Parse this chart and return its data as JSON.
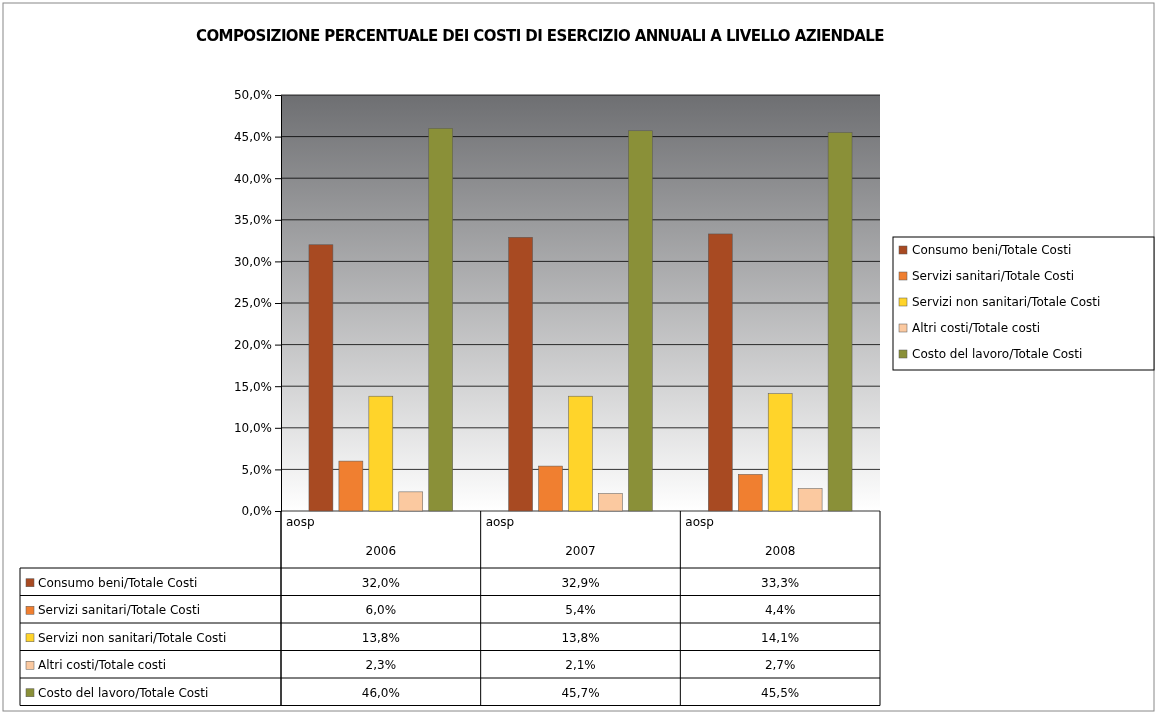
{
  "chart_data": {
    "type": "bar",
    "title": "COMPOSIZIONE PERCENTUALE DEI COSTI DI ESERCIZIO ANNUALI A LIVELLO AZIENDALE",
    "categories": [
      "aosp\n2006",
      "aosp\n2007",
      "aosp\n2008"
    ],
    "series": [
      {
        "name": "Consumo beni/Totale Costi",
        "color": "#a84a22",
        "values": [
          32.0,
          32.9,
          33.3
        ],
        "value_labels": [
          "32,0%",
          "32,9%",
          "33,3%"
        ]
      },
      {
        "name": "Servizi sanitari/Totale Costi",
        "color": "#f07f30",
        "values": [
          6.0,
          5.4,
          4.4
        ],
        "value_labels": [
          "6,0%",
          "5,4%",
          "4,4%"
        ]
      },
      {
        "name": "Servizi non sanitari/Totale Costi",
        "color": "#ffd42a",
        "values": [
          13.8,
          13.8,
          14.1
        ],
        "value_labels": [
          "13,8%",
          "13,8%",
          "14,1%"
        ]
      },
      {
        "name": "Altri costi/Totale costi",
        "color": "#fbc9a0",
        "values": [
          2.3,
          2.1,
          2.7
        ],
        "value_labels": [
          "2,3%",
          "2,1%",
          "2,7%"
        ]
      },
      {
        "name": "Costo del lavoro/Totale Costi",
        "color": "#8a9038",
        "values": [
          46.0,
          45.7,
          45.5
        ],
        "value_labels": [
          "46,0%",
          "45,7%",
          "45,5%"
        ]
      }
    ],
    "ylim": [
      0,
      50
    ],
    "yticks": [
      {
        "value": 0,
        "label": "0,0%"
      },
      {
        "value": 5,
        "label": "5,0%"
      },
      {
        "value": 10,
        "label": "10,0%"
      },
      {
        "value": 15,
        "label": "15,0%"
      },
      {
        "value": 20,
        "label": "20,0%"
      },
      {
        "value": 25,
        "label": "25,0%"
      },
      {
        "value": 30,
        "label": "30,0%"
      },
      {
        "value": 35,
        "label": "35,0%"
      },
      {
        "value": 40,
        "label": "40,0%"
      },
      {
        "value": 45,
        "label": "45,0%"
      },
      {
        "value": 50,
        "label": "50,0%"
      }
    ],
    "grid": "y",
    "legend": "right"
  }
}
